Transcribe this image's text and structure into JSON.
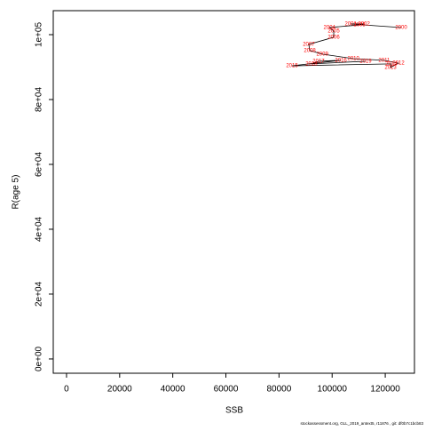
{
  "chart_data": {
    "type": "line",
    "xlabel": "SSB",
    "ylabel": "R(age 5)",
    "labels": [
      "2000",
      "2001",
      "2002",
      "2003",
      "2004",
      "2005",
      "2006",
      "2007",
      "2008",
      "2009",
      "2010",
      "2011",
      "2012",
      "2013",
      "2014",
      "2015",
      "2016",
      "2017",
      "2018",
      "2019"
    ],
    "x": [
      126000,
      107000,
      112000,
      110300,
      99000,
      100600,
      100600,
      91200,
      91600,
      96300,
      108000,
      119600,
      125000,
      122000,
      122300,
      84900,
      103300,
      94900,
      92200,
      112600
    ],
    "values": [
      102200,
      103300,
      103300,
      103000,
      102200,
      101100,
      99200,
      97000,
      95100,
      94000,
      92600,
      92100,
      91200,
      89900,
      91000,
      90400,
      92100,
      91800,
      91000,
      91800
    ],
    "line_color": "#000000",
    "label_color": "#ff0000",
    "xlim": [
      -5000,
      131000
    ],
    "ylim": [
      -4400,
      107400
    ],
    "xticks": [
      0,
      20000,
      40000,
      60000,
      80000,
      100000,
      120000
    ],
    "yticks": [
      {
        "value": 0,
        "label": "0e+00"
      },
      {
        "value": 20000,
        "label": "2e+04"
      },
      {
        "value": 40000,
        "label": "4e+04"
      },
      {
        "value": 60000,
        "label": "6e+04"
      },
      {
        "value": 80000,
        "label": "8e+04"
      },
      {
        "value": 100000,
        "label": "1e+05"
      }
    ],
    "footer": "stockassessment.org, GLL_2019_antext5, r11876 , git: df0b7c1bcb83"
  }
}
